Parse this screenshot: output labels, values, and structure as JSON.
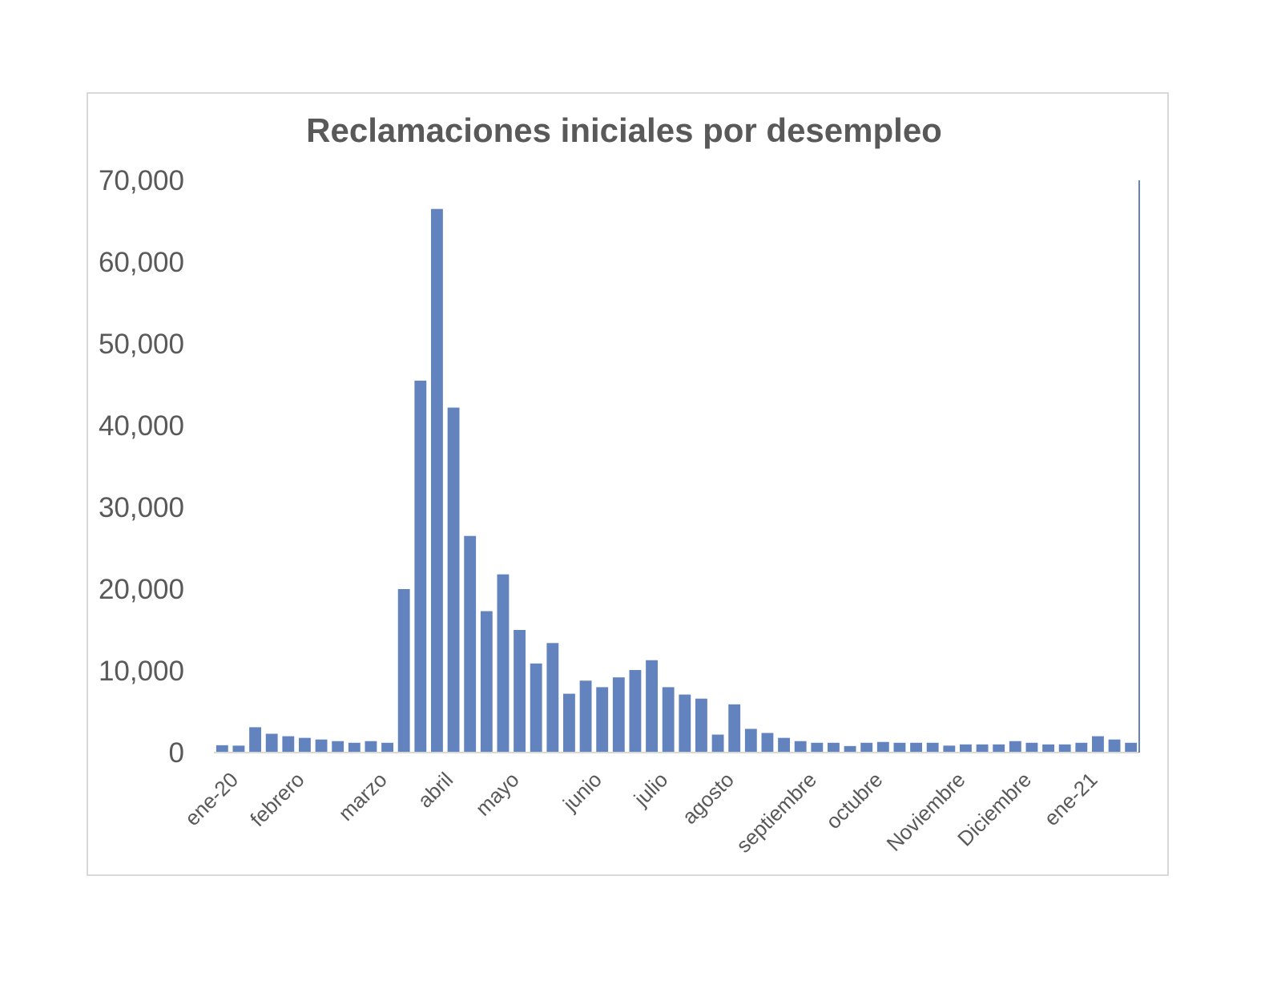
{
  "chart_data": {
    "type": "bar",
    "title": "Reclamaciones iniciales por desempleo",
    "xlabel": "",
    "ylabel": "",
    "ylim": [
      0,
      70000
    ],
    "yticks": [
      "0",
      "10,000",
      "20,000",
      "30,000",
      "40,000",
      "50,000",
      "60,000",
      "70,000"
    ],
    "ytick_values": [
      0,
      10000,
      20000,
      30000,
      40000,
      50000,
      60000,
      70000
    ],
    "xtick_labels": [
      {
        "label": "ene-20",
        "index": 0
      },
      {
        "label": "febrero",
        "index": 4
      },
      {
        "label": "marzo",
        "index": 9
      },
      {
        "label": "abril",
        "index": 13
      },
      {
        "label": "mayo",
        "index": 17
      },
      {
        "label": "junio",
        "index": 22
      },
      {
        "label": "julio",
        "index": 26
      },
      {
        "label": "agosto",
        "index": 30
      },
      {
        "label": "septiembre",
        "index": 35
      },
      {
        "label": "octubre",
        "index": 39
      },
      {
        "label": "Noviembre",
        "index": 44
      },
      {
        "label": "Diciembre",
        "index": 48
      },
      {
        "label": "ene-21",
        "index": 52
      }
    ],
    "values": [
      900,
      850,
      3100,
      2300,
      2000,
      1800,
      1600,
      1400,
      1200,
      1400,
      1200,
      20000,
      45500,
      66500,
      42200,
      26500,
      17300,
      21800,
      15000,
      10900,
      13400,
      7200,
      8800,
      8000,
      9200,
      10100,
      11300,
      8000,
      7100,
      6600,
      2200,
      5900,
      2900,
      2400,
      1800,
      1400,
      1200,
      1200,
      800,
      1200,
      1300,
      1200,
      1200,
      1200,
      850,
      1000,
      1000,
      1000,
      1400,
      1200,
      1000,
      1000,
      1200,
      2000,
      1600,
      1200
    ],
    "bar_color": "#6283bd",
    "text_color": "#595959",
    "grid": false,
    "legend": "none"
  }
}
